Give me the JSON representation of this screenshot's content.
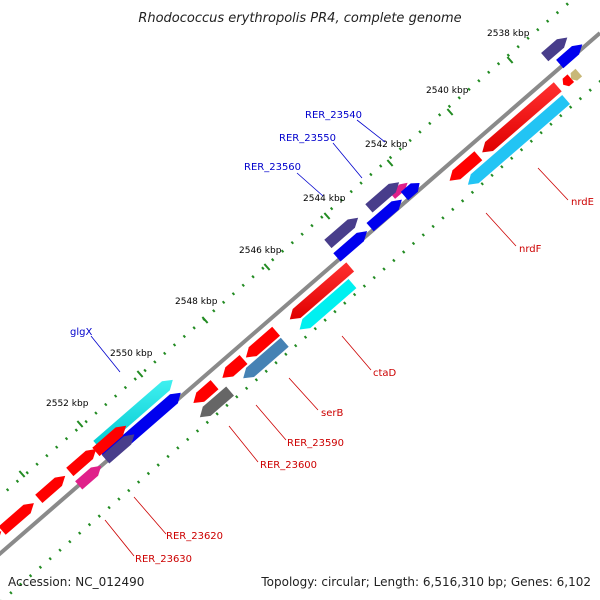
{
  "title": "Rhodococcus erythropolis PR4, complete genome",
  "footer": {
    "accession": "Accession: NC_012490",
    "summary": "Topology: circular; Length: 6,516,310 bp; Genes: 6,102"
  },
  "ticks": [
    "2538 kbp",
    "2540 kbp",
    "2542 kbp",
    "2544 kbp",
    "2546 kbp",
    "2548 kbp",
    "2550 kbp",
    "2552 kbp"
  ],
  "genes": [
    {
      "label": "RER_23540",
      "strand": "forward",
      "color": "#0000cc"
    },
    {
      "label": "RER_23550",
      "strand": "forward",
      "color": "#0000cc"
    },
    {
      "label": "RER_23560",
      "strand": "forward",
      "color": "#0000cc"
    },
    {
      "label": "glgX",
      "strand": "forward",
      "color": "#0000cc"
    },
    {
      "label": "nrdE",
      "strand": "reverse",
      "color": "#cc0000"
    },
    {
      "label": "nrdF",
      "strand": "reverse",
      "color": "#cc0000"
    },
    {
      "label": "ctaD",
      "strand": "reverse",
      "color": "#cc0000"
    },
    {
      "label": "serB",
      "strand": "reverse",
      "color": "#cc0000"
    },
    {
      "label": "RER_23590",
      "strand": "reverse",
      "color": "#cc0000"
    },
    {
      "label": "RER_23600",
      "strand": "reverse",
      "color": "#cc0000"
    },
    {
      "label": "RER_23620",
      "strand": "reverse",
      "color": "#cc0000"
    },
    {
      "label": "RER_23630",
      "strand": "reverse",
      "color": "#cc0000"
    }
  ],
  "colors": {
    "backbone": "#888888",
    "tick": "#228b22",
    "cds_fwd": "#ff0000",
    "cds_rev": "#ff0000",
    "cog_blue": "#0000ee",
    "cog_slate": "#483d8b",
    "cog_cyan": "#00ced1",
    "cog_lightblue": "#33bbee",
    "cog_gray": "#666666",
    "cog_magenta": "#e0208a"
  }
}
